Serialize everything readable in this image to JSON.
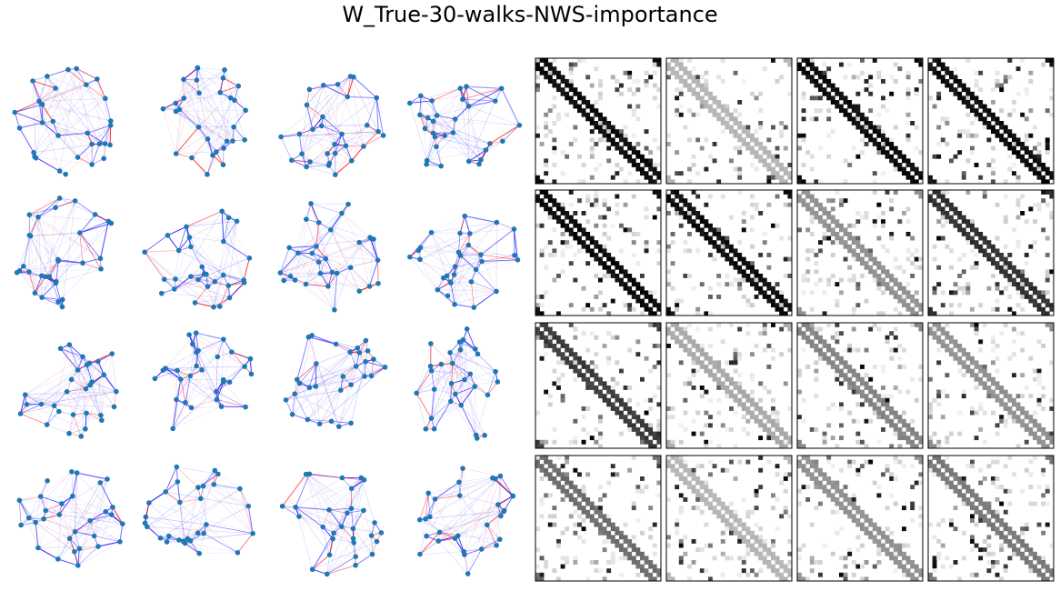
{
  "title": "W_True-30-walks-NWS-importance",
  "chart_data": {
    "type": "figure-grid",
    "title": "W_True-30-walks-NWS-importance",
    "grid": {
      "rows": 4,
      "columns": 8
    },
    "panels": {
      "network_panels": {
        "type": "network",
        "count": 16,
        "nodes_per_graph": 30,
        "node_color": "#1f77b4",
        "edge_colors": [
          "#0000ff",
          "#ff0000"
        ]
      },
      "heatmap_panels": {
        "type": "heatmap",
        "count": 16,
        "matrix_size": 30,
        "colormap": "gray_r",
        "structure": "banded diagonal (ring lattice, k=4) with scattered off-diagonal entries",
        "band_intensity": [
          [
            1.0,
            0.3,
            1.0,
            1.0
          ],
          [
            1.0,
            1.0,
            0.45,
            0.85
          ],
          [
            0.8,
            0.35,
            0.5,
            0.45
          ],
          [
            0.6,
            0.3,
            0.45,
            0.55
          ]
        ]
      }
    },
    "grid_lines": false,
    "axes_ticks": false
  }
}
